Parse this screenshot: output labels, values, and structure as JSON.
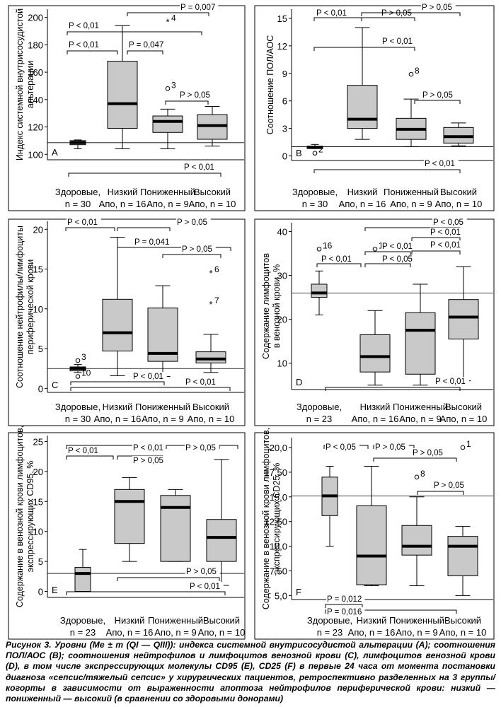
{
  "chart_data": [
    {
      "type": "boxplot",
      "panel_letter": "A",
      "ylabel": "Индекс системной внутрисосудистой альтерации",
      "yticks": [
        100,
        120,
        140,
        160,
        180,
        200
      ],
      "ylim": [
        96,
        206
      ],
      "categories": [
        [
          "Здоровые,",
          "n = 30"
        ],
        [
          "Низкий",
          "Апо, n = 16"
        ],
        [
          "Пониженный",
          "Апо, n = 9"
        ],
        [
          "Высокий",
          "Апо, n = 10"
        ]
      ],
      "reference_line": 108.5,
      "boxes": [
        {
          "whisker_low": 104,
          "q1": 107,
          "median": 108.5,
          "q3": 110,
          "whisker_high": 110.5
        },
        {
          "whisker_low": 104,
          "q1": 119,
          "median": 137,
          "q3": 168,
          "whisker_high": 194
        },
        {
          "whisker_low": 104,
          "q1": 116,
          "median": 124,
          "q3": 128,
          "whisker_high": 133
        },
        {
          "whisker_low": 106,
          "q1": 111,
          "median": 121,
          "q3": 129,
          "whisker_high": 135
        }
      ],
      "outliers": [
        {
          "group": 2,
          "value": 148,
          "marker": "o",
          "label": "3"
        },
        {
          "group": 2,
          "value": 197,
          "marker": "*",
          "label": "4"
        }
      ],
      "annotations": [
        "P < 0,01",
        "P < 0,01",
        "P = 0,047",
        "P = 0,007",
        "P > 0,05",
        "P < 0,01"
      ]
    },
    {
      "type": "boxplot",
      "panel_letter": "B",
      "ylabel": "Соотношение ПОЛ/АОС",
      "yticks": [
        0,
        3,
        6,
        9,
        12,
        15
      ],
      "yticklabels": [
        "0",
        "3",
        "6",
        "9",
        "12",
        "15"
      ],
      "ylim": [
        -0.5,
        16
      ],
      "categories": [
        [
          "Здоровые,",
          "n = 30"
        ],
        [
          "Низкий",
          "Апо, n = 16"
        ],
        [
          "Пониженный",
          "Апо, n = 9"
        ],
        [
          "Высокий",
          "Апо, n = 10"
        ]
      ],
      "reference_line": 1.0,
      "boxes": [
        {
          "whisker_low": 0.8,
          "q1": 0.8,
          "median": 0.95,
          "q3": 1.05,
          "whisker_high": 1.25
        },
        {
          "whisker_low": 1.8,
          "q1": 3.0,
          "median": 4.0,
          "q3": 7.7,
          "whisker_high": 14.0
        },
        {
          "whisker_low": 1.0,
          "q1": 1.8,
          "median": 2.9,
          "q3": 4.1,
          "whisker_high": 6.2
        },
        {
          "whisker_low": 1.1,
          "q1": 1.4,
          "median": 2.1,
          "q3": 3.1,
          "whisker_high": 3.6
        }
      ],
      "outliers": [
        {
          "group": 0,
          "value": 0.3,
          "marker": "o",
          "label": "2"
        },
        {
          "group": 2,
          "value": 8.9,
          "marker": "o",
          "label": "8"
        }
      ],
      "annotations": [
        "P < 0,01",
        "P > 0,05",
        "P > 0,05",
        "P < 0,01",
        "P > 0,05",
        "P < 0,01"
      ]
    },
    {
      "type": "boxplot",
      "panel_letter": "C",
      "ylabel": "Соотношение нейтрофилы/лимфоциты периферической крови",
      "yticks": [
        0,
        5,
        10,
        15,
        20
      ],
      "ylim": [
        -0.5,
        21
      ],
      "categories": [
        [
          "Здоровые,",
          "n = 30"
        ],
        [
          "Низкий",
          "Апо, n = 16"
        ],
        [
          "Пониженный",
          "Апо, n = 9"
        ],
        [
          "Высокий",
          "Апо, n = 10"
        ]
      ],
      "reference_line": 2.5,
      "boxes": [
        {
          "whisker_low": 2.0,
          "q1": 2.2,
          "median": 2.5,
          "q3": 2.7,
          "whisker_high": 3.0
        },
        {
          "whisker_low": 1.6,
          "q1": 4.7,
          "median": 7.0,
          "q3": 11.2,
          "whisker_high": 19.0
        },
        {
          "whisker_low": 1.5,
          "q1": 3.4,
          "median": 4.4,
          "q3": 10.1,
          "whisker_high": 12.9
        },
        {
          "whisker_low": 2.0,
          "q1": 3.2,
          "median": 3.7,
          "q3": 4.6,
          "whisker_high": 6.8
        }
      ],
      "outliers": [
        {
          "group": 0,
          "value": 3.5,
          "marker": "o",
          "label": "3"
        },
        {
          "group": 0,
          "value": 1.5,
          "marker": "o",
          "label": "10"
        },
        {
          "group": 3,
          "value": 14.5,
          "marker": "*",
          "label": "6"
        },
        {
          "group": 3,
          "value": 10.6,
          "marker": "*",
          "label": "7"
        }
      ],
      "annotations": [
        "P < 0,01",
        "P > 0,05",
        "P = 0,041",
        "P > 0,05",
        "P < 0,01",
        "P < 0,01"
      ]
    },
    {
      "type": "boxplot",
      "panel_letter": "D",
      "ylabel": "Содержание лимфоцитов в венозной крови, %",
      "yticks": [
        10,
        20,
        30,
        40
      ],
      "ylim": [
        4,
        42
      ],
      "categories": [
        [
          "Здоровые,",
          "n = 23"
        ],
        [
          "Низкий",
          "Апо, n = 16"
        ],
        [
          "Пониженный",
          "Апо, n = 9"
        ],
        [
          "Высокий",
          "Апо, n = 10"
        ]
      ],
      "reference_line": 26,
      "boxes": [
        {
          "whisker_low": 21,
          "q1": 25,
          "median": 26,
          "q3": 28,
          "whisker_high": 31
        },
        {
          "whisker_low": 5,
          "q1": 8,
          "median": 11.5,
          "q3": 16.5,
          "whisker_high": 22
        },
        {
          "whisker_low": 5,
          "q1": 7.5,
          "median": 17.5,
          "q3": 21.5,
          "whisker_high": 28
        },
        {
          "whisker_low": 6,
          "q1": 15.5,
          "median": 20.5,
          "q3": 24.5,
          "whisker_high": 32
        }
      ],
      "outliers": [
        {
          "group": 0,
          "value": 36,
          "marker": "o",
          "label": "16"
        },
        {
          "group": 1,
          "value": 36,
          "marker": "o",
          "label": "15"
        }
      ],
      "annotations": [
        "P < 0,01",
        "P < 0,05",
        "P < 0,05",
        "P < 0,01",
        "P < 0,01",
        "P < 0,01",
        "P < 0,01"
      ]
    },
    {
      "type": "boxplot",
      "panel_letter": "E",
      "ylabel": "Содержание в венозной крови лимфоцитов, экспрессирующих CD95, %",
      "yticks": [
        0,
        5,
        10,
        15,
        20,
        25
      ],
      "ylim": [
        -1,
        26
      ],
      "categories": [
        [
          "Здоровые,",
          "n = 23"
        ],
        [
          "Низкий",
          "Апо, n = 16"
        ],
        [
          "Пониженный",
          "Апо, n = 9"
        ],
        [
          "Высокий",
          "Апо, n = 10"
        ]
      ],
      "reference_line": 3,
      "boxes": [
        {
          "whisker_low": 0,
          "q1": 0,
          "median": 3,
          "q3": 4,
          "whisker_high": 7
        },
        {
          "whisker_low": 5,
          "q1": 8,
          "median": 15,
          "q3": 17,
          "whisker_high": 19
        },
        {
          "whisker_low": 5,
          "q1": 5,
          "median": 14,
          "q3": 16,
          "whisker_high": 17
        },
        {
          "whisker_low": 1,
          "q1": 5,
          "median": 9,
          "q3": 12,
          "whisker_high": 22
        }
      ],
      "outliers": [],
      "annotations": [
        "P < 0,01",
        "P < 0,01",
        "P > 0,05",
        "P > 0,05",
        "P > 0,05",
        "P < 0,01"
      ]
    },
    {
      "type": "boxplot",
      "panel_letter": "F",
      "ylabel": "Содержание в венозной крови лимфоцитов, экспрессирующих CD25, %",
      "yticks": [
        5.0,
        7.5,
        10.0,
        12.5,
        15.0,
        17.5,
        20.0
      ],
      "yticklabels": [
        "5,0",
        "7,50",
        "10,0",
        "12,50",
        "15,0",
        "17,50",
        "20,0"
      ],
      "ylim": [
        4.6,
        21.0
      ],
      "categories": [
        [
          "Здоровые,",
          "n = 23"
        ],
        [
          "Низкий",
          "Апо, n = 16"
        ],
        [
          "Пониженный",
          "Апо, n = 9"
        ],
        [
          "Высокий",
          "Апо, n = 10"
        ]
      ],
      "reference_line": 15.1,
      "boxes": [
        {
          "whisker_low": 10.0,
          "q1": 13.1,
          "median": 15.1,
          "q3": 17.0,
          "whisker_high": 18.1
        },
        {
          "whisker_low": 6.0,
          "q1": 6.1,
          "median": 9.0,
          "q3": 14.1,
          "whisker_high": 18.1
        },
        {
          "whisker_low": 6.0,
          "q1": 9.1,
          "median": 10.0,
          "q3": 12.1,
          "whisker_high": 15.0
        },
        {
          "whisker_low": 5.0,
          "q1": 7.0,
          "median": 10.0,
          "q3": 11.0,
          "whisker_high": 12.0
        }
      ],
      "outliers": [
        {
          "group": 2,
          "value": 17.0,
          "marker": "o",
          "label": "8"
        },
        {
          "group": 3,
          "value": 20.0,
          "marker": "o",
          "label": "1"
        }
      ],
      "annotations": [
        "P < 0,05",
        "P > 0,05",
        "P > 0,05",
        "P > 0,05",
        "P = 0,012",
        "P = 0,016"
      ]
    }
  ],
  "caption": "Рисунок 3. Уровни (Me ± m (QI — QIII)): индекса системной внутрисосудистой альтерации (А); соотношения ПОЛ/АОС (B); соотношения нейтрофилов и лимфоцитов венозной крови (C), лимфоцитов венозной крови (D), в том числе экспрессирующих молекулы CD95 (E), CD25 (F) в первые 24 часа от момента постановки диагноза «сепсис/тяжелый сепсис» у хирургических пациентов, ретроспективно разделенных на 3 группы/когорты в зависимости от выраженности апоптоза нейтрофилов периферической крови: низкий — пониженный — высокий (в сравнении со здоровыми донорами)",
  "colors": {
    "box_fill": "#c9c9c9",
    "stroke": "#000000",
    "median": "#000000",
    "frame": "#000000"
  }
}
